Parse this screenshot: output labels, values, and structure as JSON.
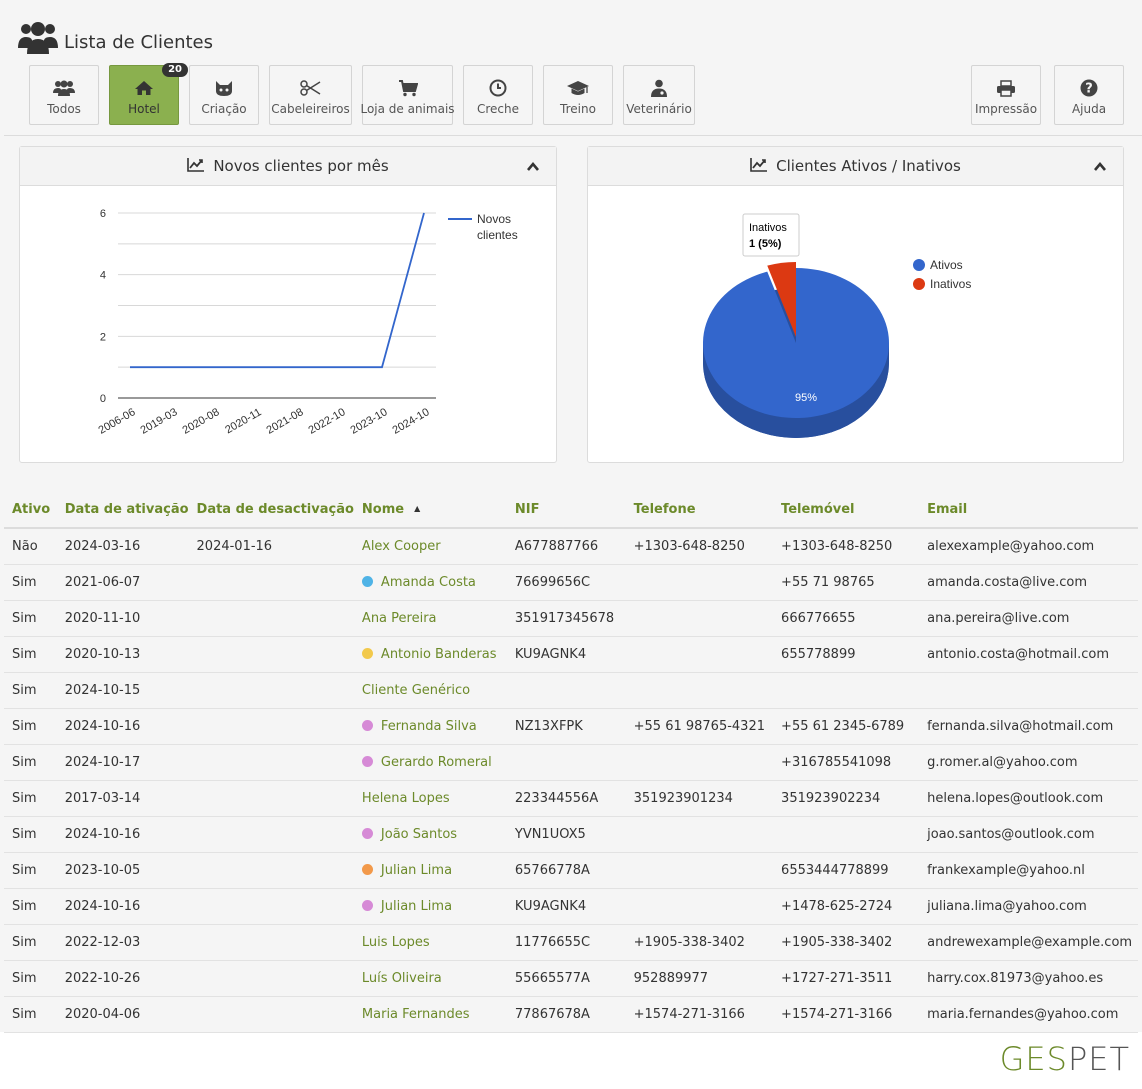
{
  "header": {
    "title": "Lista de Clientes"
  },
  "toolbar": {
    "todos": "Todos",
    "hotel": "Hotel",
    "hotel_badge": "20",
    "criacao": "Criação",
    "cabeleireiros": "Cabeleireiros",
    "loja": "Loja de animais",
    "creche": "Creche",
    "treino": "Treino",
    "veterinario": "Veterinário",
    "impressao": "Impressão",
    "ajuda": "Ajuda"
  },
  "line_panel": {
    "title": "Novos clientes por mês",
    "legend": [
      "Novos",
      "clientes"
    ]
  },
  "pie_panel": {
    "title": "Clientes Ativos / Inativos",
    "tooltip_title": "Inativos",
    "tooltip_value": "1 (5%)",
    "slice_label": "95%"
  },
  "chart_data": [
    {
      "type": "line",
      "title": "Novos clientes por mês",
      "x": [
        "2006-06",
        "2019-03",
        "2020-08",
        "2020-11",
        "2021-08",
        "2022-10",
        "2023-10",
        "2024-10"
      ],
      "series": [
        {
          "name": "Novos clientes",
          "values": [
            1,
            1,
            1,
            1,
            1,
            1,
            1,
            6
          ],
          "color": "#3366cc"
        }
      ],
      "ylim": [
        0,
        6
      ],
      "yticks": [
        0,
        2,
        4,
        6
      ],
      "grid": true,
      "legend": "right"
    },
    {
      "type": "pie",
      "title": "Clientes Ativos / Inativos",
      "labels": [
        "Ativos",
        "Inativos"
      ],
      "values": [
        95,
        5
      ],
      "colors": [
        "#3366cc",
        "#dc3912"
      ],
      "legend": "right"
    }
  ],
  "table": {
    "headers": [
      "Ativo",
      "Data de ativação",
      "Data de desactivação",
      "Nome",
      "NIF",
      "Telefone",
      "Telemóvel",
      "Email"
    ],
    "rows": [
      [
        "Não",
        "2024-03-16",
        "2024-01-16",
        "Alex Cooper",
        "A677887766",
        "+1303-648-8250",
        "+1303-648-8250",
        "alexexample@yahoo.com"
      ],
      [
        "Sim",
        "2021-06-07",
        "",
        "Amanda Costa",
        "76699656C",
        "",
        "+55 71 98765",
        "amanda.costa@live.com"
      ],
      [
        "Sim",
        "2020-11-10",
        "",
        "Ana Pereira",
        "351917345678",
        "",
        "666776655",
        "ana.pereira@live.com"
      ],
      [
        "Sim",
        "2020-10-13",
        "",
        "Antonio Banderas",
        "KU9AGNK4",
        "",
        "655778899",
        "antonio.costa@hotmail.com"
      ],
      [
        "Sim",
        "2024-10-15",
        "",
        "Cliente Genérico",
        "",
        "",
        "",
        ""
      ],
      [
        "Sim",
        "2024-10-16",
        "",
        "Fernanda Silva",
        "NZ13XFPK",
        "+55 61 98765-4321",
        "+55 61 2345-6789",
        "fernanda.silva@hotmail.com"
      ],
      [
        "Sim",
        "2024-10-17",
        "",
        "Gerardo Romeral",
        "",
        "",
        "+316785541098",
        "g.romer.al@yahoo.com"
      ],
      [
        "Sim",
        "2017-03-14",
        "",
        "Helena Lopes",
        "223344556A",
        "351923901234",
        "351923902234",
        "helena.lopes@outlook.com"
      ],
      [
        "Sim",
        "2024-10-16",
        "",
        "João Santos",
        "YVN1UOX5",
        "",
        "",
        "joao.santos@outlook.com"
      ],
      [
        "Sim",
        "2023-10-05",
        "",
        "Julian Lima",
        "65766778A",
        "",
        "6553444778899",
        "frankexample@yahoo.nl"
      ],
      [
        "Sim",
        "2024-10-16",
        "",
        "Julian Lima",
        "KU9AGNK4",
        "",
        "+1478-625-2724",
        "juliana.lima@yahoo.com"
      ],
      [
        "Sim",
        "2022-12-03",
        "",
        "Luis Lopes",
        "11776655C",
        "+1905-338-3402",
        "+1905-338-3402",
        "andrewexample@example.com"
      ],
      [
        "Sim",
        "2022-10-26",
        "",
        "Luís Oliveira",
        "55665577A",
        "952889977",
        "+1727-271-3511",
        "harry.cox.81973@yahoo.es"
      ],
      [
        "Sim",
        "2020-04-06",
        "",
        "Maria Fernandes",
        "77867678A",
        "+1574-271-3166",
        "+1574-271-3166",
        "maria.fernandes@yahoo.com"
      ]
    ],
    "dot_colors": [
      "",
      "#4fb3e6",
      "",
      "#f2c94c",
      "",
      "#d68ad6",
      "#d68ad6",
      "",
      "#d68ad6",
      "#f2994a",
      "#d68ad6",
      "",
      "",
      ""
    ]
  },
  "footer": {
    "logo_part1": "GES",
    "logo_part2": "PET"
  }
}
